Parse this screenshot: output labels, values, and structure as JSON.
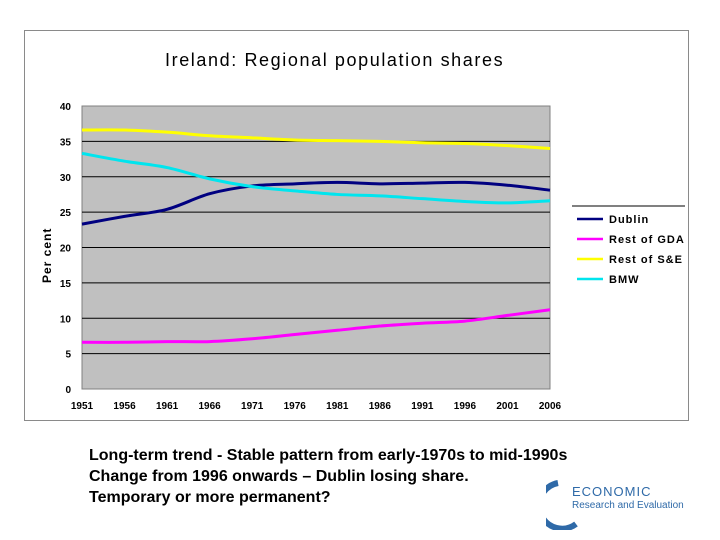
{
  "chart_data": {
    "type": "line",
    "title": "Ireland: Regional population shares",
    "ylabel": "Per cent",
    "xlabel": "",
    "ylim": [
      0,
      40
    ],
    "yticks": [
      0,
      5,
      10,
      15,
      20,
      25,
      30,
      35,
      40
    ],
    "categories": [
      "1951",
      "1956",
      "1961",
      "1966",
      "1971",
      "1976",
      "1981",
      "1986",
      "1991",
      "1996",
      "2001",
      "2006"
    ],
    "grid": true,
    "legend_position": "right",
    "plot_background": "#c0c0c0",
    "series": [
      {
        "name": "Dublin",
        "color": "#000080",
        "values": [
          23.3,
          24.4,
          25.4,
          27.6,
          28.7,
          29.0,
          29.2,
          29.0,
          29.1,
          29.2,
          28.8,
          28.1
        ]
      },
      {
        "name": "Rest of GDA",
        "color": "#ff00ff",
        "values": [
          6.6,
          6.6,
          6.7,
          6.7,
          7.1,
          7.7,
          8.3,
          8.9,
          9.3,
          9.6,
          10.4,
          11.2
        ]
      },
      {
        "name": "Rest of S&E",
        "color": "#ffff00",
        "values": [
          36.6,
          36.6,
          36.3,
          35.8,
          35.5,
          35.2,
          35.1,
          35.0,
          34.8,
          34.7,
          34.4,
          34.0
        ]
      },
      {
        "name": "BMW",
        "color": "#00e5ee",
        "values": [
          33.3,
          32.2,
          31.3,
          29.7,
          28.6,
          28.0,
          27.5,
          27.3,
          26.9,
          26.5,
          26.3,
          26.6
        ]
      }
    ]
  },
  "caption": {
    "line1": "Long-term trend - Stable pattern from early-1970s to mid-1990s",
    "line2": "Change from 1996 onwards – Dublin losing share.",
    "line3": "Temporary or more permanent?"
  },
  "logo": {
    "word1": "ECONOMIC",
    "word2": "Research and Evaluation",
    "color": "#2f6aa8"
  }
}
